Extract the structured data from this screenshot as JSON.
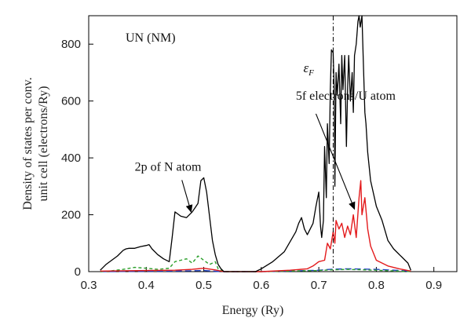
{
  "chart_data": {
    "type": "line",
    "title": "UN (NM)",
    "xlabel": "Energy (Ry)",
    "ylabel_line1": "Density of states per conv.",
    "ylabel_line2": "unit cell (electrons/Ry)",
    "xlim": [
      0.3,
      0.94
    ],
    "ylim": [
      0,
      900
    ],
    "xticks": [
      0.3,
      0.4,
      0.5,
      0.6,
      0.7,
      0.8,
      0.9
    ],
    "yticks": [
      0,
      200,
      400,
      600,
      800
    ],
    "xtick_labels": [
      "0.3",
      "0.4",
      "0.5",
      "0.6",
      "0.7",
      "0.8",
      "0.9"
    ],
    "ytick_labels": [
      "0",
      "200",
      "400",
      "600",
      "800"
    ],
    "fermi_energy": 0.725,
    "fermi_label": "ε",
    "fermi_label_sub": "F",
    "grid": false,
    "annotations": [
      {
        "text": "5f electrons/U atom",
        "x": 0.66,
        "y": 605,
        "arrow_from": [
          0.695,
          555
        ],
        "arrow_to": [
          0.762,
          220
        ]
      },
      {
        "text": "2p of N atom",
        "x": 0.38,
        "y": 355,
        "arrow_from": [
          0.462,
          322
        ],
        "arrow_to": [
          0.478,
          210
        ]
      }
    ],
    "series": [
      {
        "name": "",
        "color": "#000000",
        "dash": "",
        "x": [
          0.32,
          0.33,
          0.34,
          0.35,
          0.36,
          0.365,
          0.37,
          0.38,
          0.39,
          0.4,
          0.405,
          0.41,
          0.42,
          0.43,
          0.44,
          0.445,
          0.45,
          0.46,
          0.47,
          0.48,
          0.485,
          0.49,
          0.495,
          0.5,
          0.505,
          0.51,
          0.515,
          0.52,
          0.525,
          0.53,
          0.535,
          0.59,
          0.6,
          0.62,
          0.64,
          0.66,
          0.665,
          0.67,
          0.675,
          0.68,
          0.69,
          0.695,
          0.7,
          0.703,
          0.705,
          0.708,
          0.71,
          0.713,
          0.715,
          0.718,
          0.72,
          0.722,
          0.725,
          0.727,
          0.728,
          0.73,
          0.732,
          0.735,
          0.738,
          0.74,
          0.742,
          0.745,
          0.748,
          0.75,
          0.752,
          0.755,
          0.758,
          0.76,
          0.762,
          0.765,
          0.768,
          0.77,
          0.772,
          0.775,
          0.777,
          0.78,
          0.782,
          0.785,
          0.79,
          0.8,
          0.81,
          0.82,
          0.83,
          0.84,
          0.845,
          0.85,
          0.855,
          0.86
        ],
        "y": [
          5,
          25,
          40,
          55,
          75,
          80,
          82,
          82,
          88,
          92,
          95,
          80,
          60,
          45,
          35,
          120,
          210,
          195,
          190,
          210,
          225,
          240,
          320,
          330,
          280,
          195,
          110,
          60,
          25,
          10,
          0,
          0,
          10,
          35,
          70,
          140,
          170,
          190,
          150,
          130,
          170,
          230,
          280,
          160,
          120,
          180,
          440,
          260,
          520,
          380,
          640,
          780,
          770,
          620,
          300,
          700,
          620,
          730,
          520,
          760,
          640,
          760,
          440,
          640,
          760,
          600,
          700,
          560,
          760,
          800,
          880,
          900,
          860,
          900,
          760,
          560,
          520,
          420,
          320,
          230,
          180,
          110,
          80,
          60,
          50,
          40,
          30,
          5
        ]
      },
      {
        "name": "",
        "color": "#e31a1c",
        "dash": "",
        "x": [
          0.32,
          0.36,
          0.4,
          0.45,
          0.48,
          0.5,
          0.52,
          0.535,
          0.6,
          0.65,
          0.68,
          0.69,
          0.7,
          0.71,
          0.715,
          0.72,
          0.725,
          0.728,
          0.73,
          0.735,
          0.74,
          0.745,
          0.75,
          0.755,
          0.76,
          0.765,
          0.77,
          0.773,
          0.775,
          0.78,
          0.785,
          0.79,
          0.8,
          0.82,
          0.84,
          0.86
        ],
        "y": [
          2,
          3,
          4,
          5,
          8,
          12,
          6,
          0,
          0,
          5,
          10,
          20,
          35,
          40,
          100,
          80,
          140,
          100,
          180,
          150,
          170,
          120,
          160,
          130,
          200,
          120,
          260,
          320,
          200,
          260,
          150,
          90,
          40,
          20,
          10,
          2
        ]
      },
      {
        "name": "",
        "color": "#2ca02c",
        "dash": "4,3",
        "x": [
          0.32,
          0.34,
          0.36,
          0.38,
          0.4,
          0.42,
          0.44,
          0.45,
          0.46,
          0.47,
          0.48,
          0.49,
          0.5,
          0.51,
          0.52,
          0.525,
          0.535,
          0.6,
          0.65,
          0.7,
          0.72,
          0.75,
          0.8,
          0.86
        ],
        "y": [
          0,
          3,
          8,
          15,
          12,
          8,
          12,
          35,
          40,
          45,
          30,
          55,
          40,
          25,
          35,
          10,
          0,
          0,
          2,
          4,
          6,
          8,
          5,
          0
        ]
      },
      {
        "name": "",
        "color": "#1f3fbf",
        "dash": "8,4",
        "x": [
          0.32,
          0.4,
          0.45,
          0.5,
          0.53,
          0.6,
          0.65,
          0.7,
          0.72,
          0.75,
          0.8,
          0.85,
          0.86
        ],
        "y": [
          0,
          1,
          2,
          4,
          0,
          0,
          2,
          5,
          8,
          10,
          8,
          3,
          0
        ]
      }
    ]
  }
}
